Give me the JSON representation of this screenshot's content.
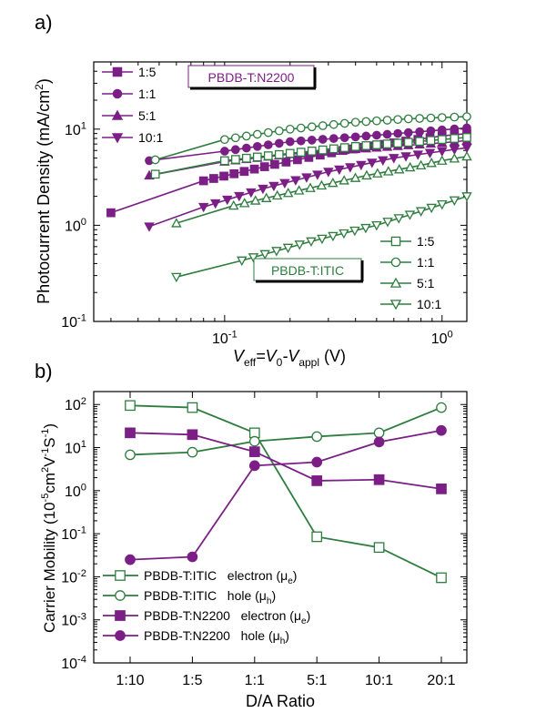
{
  "colors": {
    "green": "#2e7d3e",
    "purple": "#7b1f86"
  },
  "chart_data": [
    {
      "type": "line",
      "panel_label": "a)",
      "xscale": "log",
      "yscale": "log",
      "xlim": [
        0.025,
        1.3
      ],
      "ylim": [
        0.1,
        50
      ],
      "xlabel_parts": [
        "V",
        "eff",
        "=V",
        "0",
        "-V",
        "appl",
        " (V)"
      ],
      "ylabel": "Photocurrent Density (mA/cm",
      "ylabel_sup": "2",
      "ylabel_end": ")",
      "xticks": [
        {
          "v": 0.1,
          "base": "10",
          "exp": "-1"
        },
        {
          "v": 1,
          "base": "10",
          "exp": "0"
        }
      ],
      "yticks": [
        {
          "v": 0.1,
          "base": "10",
          "exp": "-1"
        },
        {
          "v": 1,
          "base": "10",
          "exp": "0"
        },
        {
          "v": 10,
          "base": "10",
          "exp": "1"
        }
      ],
      "annotations": {
        "n2200": "PBDB-T:N2200",
        "itic": "PBDB-T:ITIC"
      },
      "legend_n2200": [
        "1:5",
        "1:1",
        "5:1",
        "10:1"
      ],
      "legend_itic": [
        "1:5",
        "1:1",
        "5:1",
        "10:1"
      ],
      "series": [
        {
          "name": "1:5",
          "group": "N2200",
          "marker": "square",
          "filled": true,
          "x": [
            0.03,
            0.08,
            0.17,
            0.35,
            0.6,
            1.0,
            1.3
          ],
          "y": [
            1.35,
            2.9,
            4.3,
            6.0,
            7.2,
            8.5,
            9.0
          ]
        },
        {
          "name": "1:1",
          "group": "N2200",
          "marker": "circle",
          "filled": true,
          "x": [
            0.045,
            0.1,
            0.2,
            0.4,
            0.7,
            1.0,
            1.3
          ],
          "y": [
            4.7,
            5.9,
            7.4,
            8.3,
            9.2,
            9.8,
            10.3
          ]
        },
        {
          "name": "5:1",
          "group": "N2200",
          "marker": "triangle",
          "filled": true,
          "x": [
            0.045,
            0.1,
            0.2,
            0.4,
            0.7,
            1.0,
            1.3
          ],
          "y": [
            3.3,
            4.6,
            5.5,
            6.2,
            6.8,
            7.2,
            7.6
          ]
        },
        {
          "name": "10:1",
          "group": "N2200",
          "marker": "triangle-down",
          "filled": true,
          "x": [
            0.045,
            0.08,
            0.15,
            0.3,
            0.6,
            1.0,
            1.3
          ],
          "y": [
            0.97,
            1.55,
            2.4,
            3.6,
            5.0,
            5.9,
            6.4
          ]
        },
        {
          "name": "1:5",
          "group": "ITIC",
          "marker": "square",
          "filled": false,
          "x": [
            0.048,
            0.1,
            0.2,
            0.4,
            0.7,
            1.0,
            1.3
          ],
          "y": [
            3.4,
            4.7,
            5.6,
            6.6,
            7.3,
            7.8,
            8.2
          ]
        },
        {
          "name": "1:1",
          "group": "ITIC",
          "marker": "circle",
          "filled": false,
          "x": [
            0.048,
            0.1,
            0.2,
            0.4,
            0.7,
            1.0,
            1.3
          ],
          "y": [
            4.8,
            7.8,
            10.0,
            11.8,
            12.8,
            13.2,
            13.5
          ]
        },
        {
          "name": "5:1",
          "group": "ITIC",
          "marker": "triangle",
          "filled": false,
          "x": [
            0.06,
            0.11,
            0.22,
            0.45,
            0.8,
            1.0,
            1.3
          ],
          "y": [
            1.05,
            1.6,
            2.3,
            3.3,
            4.2,
            4.7,
            5.2
          ]
        },
        {
          "name": "10:1",
          "group": "ITIC",
          "marker": "triangle-down",
          "filled": false,
          "x": [
            0.06,
            0.12,
            0.25,
            0.5,
            0.8,
            1.0,
            1.3
          ],
          "y": [
            0.29,
            0.43,
            0.68,
            1.0,
            1.4,
            1.65,
            2.0
          ]
        }
      ]
    },
    {
      "type": "line",
      "panel_label": "b)",
      "yscale": "log",
      "ylim": [
        0.0001,
        200
      ],
      "categories": [
        "1:10",
        "1:5",
        "1:1",
        "5:1",
        "10:1",
        "20:1"
      ],
      "xlabel": "D/A Ratio",
      "ylabel_parts": [
        "Carrier Mobility (10",
        "-5",
        "cm",
        "2",
        "V",
        "-1",
        "S",
        "-1",
        ")"
      ],
      "yticks": [
        {
          "v": 0.0001,
          "base": "10",
          "exp": "-4"
        },
        {
          "v": 0.001,
          "base": "10",
          "exp": "-3"
        },
        {
          "v": 0.01,
          "base": "10",
          "exp": "-2"
        },
        {
          "v": 0.1,
          "base": "10",
          "exp": "-1"
        },
        {
          "v": 1,
          "base": "10",
          "exp": "0"
        },
        {
          "v": 10,
          "base": "10",
          "exp": "1"
        },
        {
          "v": 100,
          "base": "10",
          "exp": "2"
        }
      ],
      "series": [
        {
          "name": "PBDB-T:ITIC   electron (μ",
          "sub": "e",
          "group": "ITIC",
          "marker": "square",
          "filled": false,
          "values": [
            95,
            85,
            22,
            0.085,
            0.048,
            0.0095
          ]
        },
        {
          "name": "PBDB-T:ITIC   hole (μ",
          "sub": "h",
          "group": "ITIC",
          "marker": "circle",
          "filled": false,
          "values": [
            6.8,
            7.8,
            14,
            18,
            22,
            85
          ]
        },
        {
          "name": "PBDB-T:N2200   electron (μ",
          "sub": "e",
          "group": "N2200",
          "marker": "square",
          "filled": true,
          "values": [
            22,
            20,
            8,
            1.7,
            1.8,
            1.1
          ]
        },
        {
          "name": "PBDB-T:N2200   hole (μ",
          "sub": "h",
          "group": "N2200",
          "marker": "circle",
          "filled": true,
          "values": [
            0.025,
            0.029,
            3.8,
            4.6,
            13.5,
            25
          ]
        }
      ]
    }
  ]
}
